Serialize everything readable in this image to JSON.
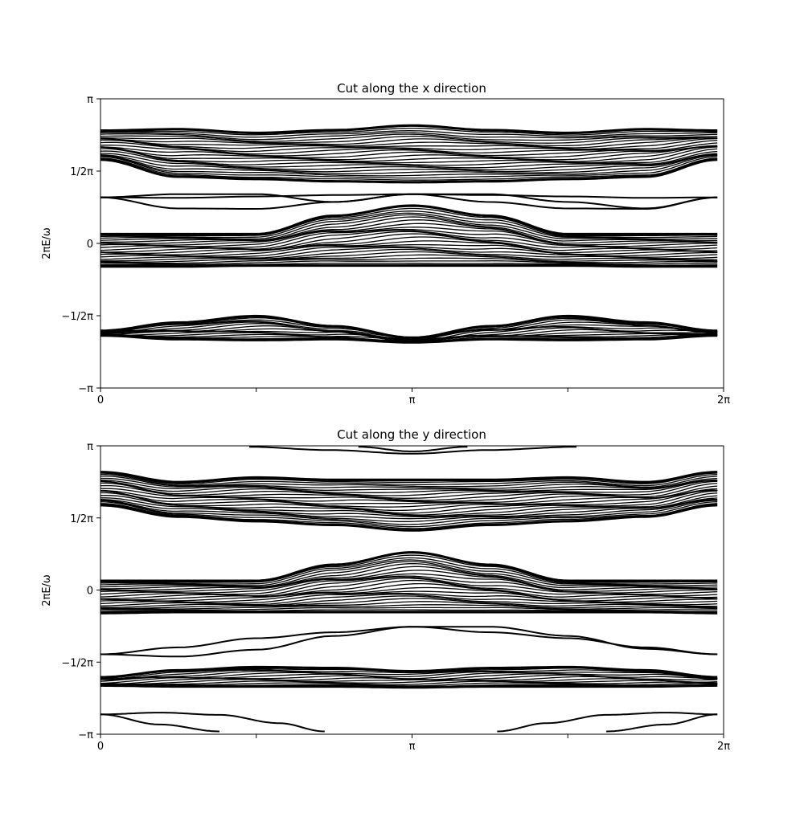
{
  "chart_data": [
    {
      "type": "line",
      "title": "Cut along the x direction",
      "ylabel": "2πE/ω",
      "xlim": [
        0,
        6.2832
      ],
      "ylim": [
        -3.1416,
        3.1416
      ],
      "xticks": [
        {
          "value": 0,
          "label": "0"
        },
        {
          "value": 1.5708,
          "label": ""
        },
        {
          "value": 3.1416,
          "label": "π"
        },
        {
          "value": 4.7124,
          "label": ""
        },
        {
          "value": 6.2832,
          "label": "2π"
        }
      ],
      "yticks": [
        {
          "value": -3.1416,
          "label": "−π"
        },
        {
          "value": -1.5708,
          "label": "−1/2π"
        },
        {
          "value": 0,
          "label": "0"
        },
        {
          "value": 1.5708,
          "label": "1/2π"
        },
        {
          "value": 3.1416,
          "label": "π"
        }
      ],
      "bands": [
        {
          "x": [
            0,
            0.785,
            1.571,
            2.356,
            3.142,
            3.927,
            4.712,
            5.498,
            6.22
          ],
          "upper": [
            2.45,
            2.48,
            2.4,
            2.46,
            2.56,
            2.46,
            2.4,
            2.48,
            2.45
          ],
          "lower": [
            1.82,
            1.45,
            1.4,
            1.35,
            1.33,
            1.35,
            1.4,
            1.45,
            1.82
          ],
          "lines": 24
        },
        {
          "x": [
            0,
            0.785,
            1.571,
            2.356,
            3.142,
            3.927,
            4.712,
            5.498,
            6.22
          ],
          "upper": [
            0.2,
            0.2,
            0.2,
            0.6,
            0.82,
            0.6,
            0.2,
            0.2,
            0.2
          ],
          "lower": [
            -0.5,
            -0.5,
            -0.48,
            -0.48,
            -0.48,
            -0.48,
            -0.48,
            -0.5,
            -0.5
          ],
          "lines": 24
        },
        {
          "x": [
            0,
            0.785,
            1.571,
            2.356,
            3.142,
            3.927,
            4.712,
            5.498,
            6.22
          ],
          "upper": [
            -1.9,
            -1.72,
            -1.58,
            -1.8,
            -2.05,
            -1.8,
            -1.58,
            -1.72,
            -1.9
          ],
          "lower": [
            -2.0,
            -2.08,
            -2.1,
            -2.08,
            -2.15,
            -2.08,
            -2.1,
            -2.08,
            -2.0
          ],
          "lines": 16
        }
      ],
      "edge_states": [
        {
          "x": [
            0,
            0.785,
            1.571,
            2.356,
            3.142,
            3.927,
            4.712,
            5.498,
            6.22
          ],
          "y": [
            1.0,
            0.99,
            1.02,
            1.05,
            1.07,
            1.05,
            1.02,
            0.99,
            1.0
          ]
        },
        {
          "x": [
            0,
            0.785,
            1.571,
            2.356,
            3.142,
            3.927,
            4.712,
            5.498,
            6.22
          ],
          "y": [
            1.0,
            0.76,
            0.75,
            0.9,
            1.07,
            1.07,
            0.9,
            0.76,
            1.0
          ]
        },
        {
          "x": [
            0,
            0.785,
            1.571,
            2.356,
            3.142,
            3.927,
            4.712,
            5.498,
            6.22
          ],
          "y": [
            1.0,
            1.07,
            1.07,
            0.9,
            1.07,
            0.9,
            0.76,
            0.75,
            1.0
          ]
        }
      ]
    },
    {
      "type": "line",
      "title": "Cut along the y direction",
      "ylabel": "2πE/ω",
      "xlim": [
        0,
        6.2832
      ],
      "ylim": [
        -3.1416,
        3.1416
      ],
      "xticks": [
        {
          "value": 0,
          "label": "0"
        },
        {
          "value": 1.5708,
          "label": ""
        },
        {
          "value": 3.1416,
          "label": "π"
        },
        {
          "value": 4.7124,
          "label": ""
        },
        {
          "value": 6.2832,
          "label": "2π"
        }
      ],
      "yticks": [
        {
          "value": -3.1416,
          "label": "−π"
        },
        {
          "value": -1.5708,
          "label": "−1/2π"
        },
        {
          "value": 0,
          "label": "0"
        },
        {
          "value": 1.5708,
          "label": "1/2π"
        },
        {
          "value": 3.1416,
          "label": "π"
        }
      ],
      "bands": [
        {
          "x": [
            0,
            0.785,
            1.571,
            2.356,
            3.142,
            3.927,
            4.712,
            5.498,
            6.22
          ],
          "upper": [
            2.57,
            2.35,
            2.45,
            2.4,
            2.4,
            2.4,
            2.45,
            2.35,
            2.57
          ],
          "lower": [
            1.85,
            1.6,
            1.5,
            1.42,
            1.3,
            1.42,
            1.5,
            1.6,
            1.85
          ],
          "lines": 24
        },
        {
          "x": [
            0,
            0.785,
            1.571,
            2.356,
            3.142,
            3.927,
            4.712,
            5.498,
            6.22
          ],
          "upper": [
            0.2,
            0.2,
            0.2,
            0.55,
            0.82,
            0.55,
            0.2,
            0.2,
            0.2
          ],
          "lower": [
            -0.5,
            -0.48,
            -0.48,
            -0.48,
            -0.48,
            -0.48,
            -0.48,
            -0.48,
            -0.5
          ],
          "lines": 24
        },
        {
          "x": [
            0,
            0.785,
            1.571,
            2.356,
            3.142,
            3.927,
            4.712,
            5.498,
            6.22
          ],
          "upper": [
            -1.9,
            -1.75,
            -1.68,
            -1.7,
            -1.77,
            -1.7,
            -1.68,
            -1.75,
            -1.9
          ],
          "lower": [
            -2.08,
            -2.1,
            -2.1,
            -2.1,
            -2.12,
            -2.1,
            -2.1,
            -2.1,
            -2.08
          ],
          "lines": 14
        }
      ],
      "edge_states": [
        {
          "x": [
            0,
            0.785,
            1.571,
            2.356,
            3.142,
            3.927,
            4.712,
            5.498,
            6.22
          ],
          "y": [
            -1.4,
            -1.25,
            -1.05,
            -0.92,
            -0.8,
            -0.92,
            -1.05,
            -1.25,
            -1.4
          ]
        },
        {
          "x": [
            0,
            0.785,
            1.571,
            2.356,
            3.142,
            3.927,
            4.712,
            5.498,
            6.22
          ],
          "y": [
            -1.4,
            -1.45,
            -1.3,
            -1.0,
            -0.8,
            -0.8,
            -1.0,
            -1.28,
            -1.4
          ]
        },
        {
          "x": [
            1.5,
            2.3,
            3.142,
            3.9,
            4.8
          ],
          "y": [
            3.12,
            3.05,
            2.97,
            3.05,
            3.12
          ]
        },
        {
          "x": [
            2.6,
            3.142,
            3.7
          ],
          "y": [
            3.12,
            3.02,
            3.12
          ]
        },
        {
          "x": [
            0,
            0.6,
            1.2
          ],
          "y": [
            -2.71,
            -2.93,
            -3.08
          ]
        },
        {
          "x": [
            0,
            0.6,
            1.2,
            1.8,
            2.26
          ],
          "y": [
            -2.71,
            -2.67,
            -2.72,
            -2.9,
            -3.08
          ]
        },
        {
          "x": [
            5.1,
            5.7,
            6.22
          ],
          "y": [
            -3.08,
            -2.93,
            -2.71
          ]
        },
        {
          "x": [
            4.0,
            4.5,
            5.1,
            5.7,
            6.22
          ],
          "y": [
            -3.08,
            -2.9,
            -2.72,
            -2.67,
            -2.71
          ]
        }
      ]
    }
  ]
}
